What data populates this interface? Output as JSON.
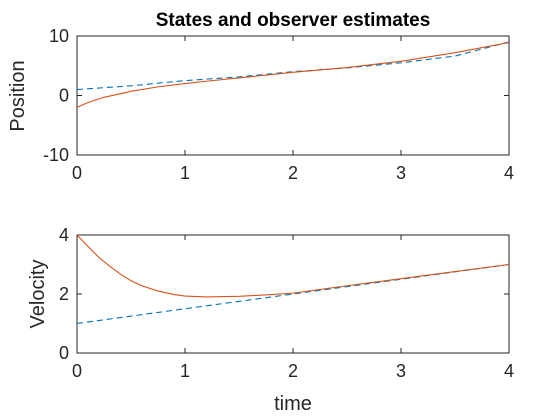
{
  "chart_data": [
    {
      "type": "line",
      "title": "States and observer estimates",
      "xlabel": "",
      "ylabel": "Position",
      "xlim": [
        0,
        4
      ],
      "ylim": [
        -10,
        10
      ],
      "xticks": [
        "0",
        "1",
        "2",
        "3",
        "4"
      ],
      "yticks": [
        "-10",
        "0",
        "10"
      ],
      "grid": false,
      "series": [
        {
          "style": "dashed",
          "color": "#0072BD",
          "x": [
            0,
            0.5,
            1,
            1.5,
            2,
            2.5,
            3,
            3.5,
            4
          ],
          "y": [
            1,
            1.63,
            2.5,
            3.13,
            4,
            4.63,
            5.5,
            6.63,
            9
          ]
        },
        {
          "style": "solid",
          "color": "#D95319",
          "x": [
            0,
            0.1,
            0.25,
            0.5,
            0.75,
            1,
            1.25,
            1.5,
            2,
            2.5,
            3,
            3.5,
            4
          ],
          "y": [
            -2,
            -1.2,
            -0.3,
            0.7,
            1.45,
            2.0,
            2.5,
            2.95,
            3.9,
            4.7,
            5.75,
            7.2,
            8.9
          ]
        }
      ]
    },
    {
      "type": "line",
      "title": "",
      "xlabel": "time",
      "ylabel": "Velocity",
      "xlim": [
        0,
        4
      ],
      "ylim": [
        0,
        4
      ],
      "xticks": [
        "0",
        "1",
        "2",
        "3",
        "4"
      ],
      "yticks": [
        "0",
        "2",
        "4"
      ],
      "grid": false,
      "series": [
        {
          "style": "dashed",
          "color": "#0072BD",
          "x": [
            0,
            1,
            2,
            3,
            4
          ],
          "y": [
            1,
            1.5,
            2,
            2.5,
            3
          ]
        },
        {
          "style": "solid",
          "color": "#D95319",
          "x": [
            0,
            0.1,
            0.2,
            0.3,
            0.4,
            0.5,
            0.6,
            0.75,
            0.9,
            1.0,
            1.2,
            1.5,
            1.8,
            2.0,
            2.5,
            3.0,
            3.5,
            4.0
          ],
          "y": [
            4.0,
            3.62,
            3.25,
            2.95,
            2.68,
            2.45,
            2.28,
            2.1,
            1.98,
            1.93,
            1.9,
            1.92,
            1.98,
            2.03,
            2.28,
            2.52,
            2.76,
            3.0
          ]
        }
      ]
    }
  ]
}
